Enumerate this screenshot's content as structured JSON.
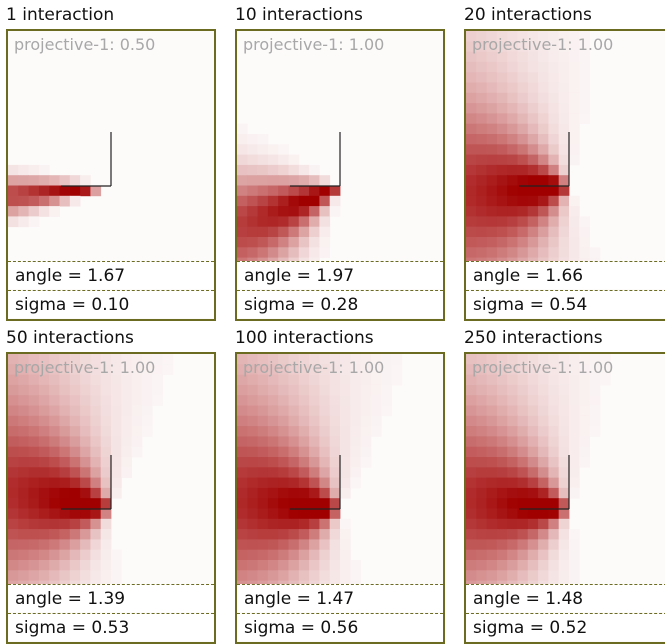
{
  "panels": [
    {
      "title": "1 interaction",
      "projective_label": "projective-1:",
      "projective_value": "0.50",
      "angle_label": "angle",
      "angle_value": "1.67",
      "sigma_label": "sigma",
      "sigma_value": "0.10",
      "angle": 1.67,
      "sigma": 0.1,
      "intensity": 1.0
    },
    {
      "title": "10 interactions",
      "projective_label": "projective-1:",
      "projective_value": "1.00",
      "angle_label": "angle",
      "angle_value": "1.97",
      "sigma_label": "sigma",
      "sigma_value": "0.28",
      "angle": 1.97,
      "sigma": 0.28,
      "intensity": 1.0
    },
    {
      "title": "20 interactions",
      "projective_label": "projective-1:",
      "projective_value": "1.00",
      "angle_label": "angle",
      "angle_value": "1.66",
      "sigma_label": "sigma",
      "sigma_value": "0.54",
      "angle": 1.66,
      "sigma": 0.54,
      "intensity": 1.0
    },
    {
      "title": "50 interactions",
      "projective_label": "projective-1:",
      "projective_value": "1.00",
      "angle_label": "angle",
      "angle_value": "1.39",
      "sigma_label": "sigma",
      "sigma_value": "0.53",
      "angle": 1.39,
      "sigma": 0.53,
      "intensity": 1.0
    },
    {
      "title": "100 interactions",
      "projective_label": "projective-1:",
      "projective_value": "1.00",
      "angle_label": "angle",
      "angle_value": "1.47",
      "sigma_label": "sigma",
      "sigma_value": "0.56",
      "angle": 1.47,
      "sigma": 0.56,
      "intensity": 1.0
    },
    {
      "title": "250 interactions",
      "projective_label": "projective-1:",
      "projective_value": "1.00",
      "angle_label": "angle",
      "angle_value": "1.48",
      "sigma_label": "sigma",
      "sigma_value": "0.52",
      "angle": 1.48,
      "sigma": 0.52,
      "intensity": 1.0
    }
  ],
  "colors": {
    "frame": "#6b6b22",
    "heat_high": "#a00000",
    "heat_low": "#fdfafa",
    "axis": "#222222"
  }
}
